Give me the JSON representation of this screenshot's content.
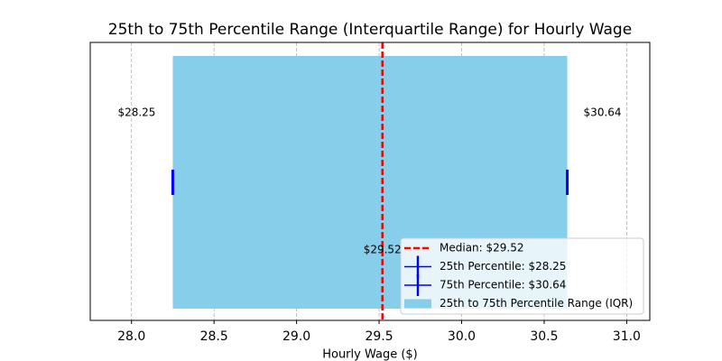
{
  "chart_data": {
    "type": "range",
    "title": "25th to 75th Percentile Range (Interquartile Range) for Hourly Wage",
    "x_label": "Hourly Wage ($)",
    "xlim": [
      27.75,
      31.14
    ],
    "xticks": [
      {
        "value": 28,
        "label": "28.0"
      },
      {
        "value": 28.5,
        "label": "28.5"
      },
      {
        "value": 29,
        "label": "29.0"
      },
      {
        "value": 29.5,
        "label": "29.5"
      },
      {
        "value": 30,
        "label": "30.0"
      },
      {
        "value": 30.5,
        "label": "30.5"
      },
      {
        "value": 31,
        "label": "31.0"
      }
    ],
    "grid": true,
    "legend": "lower right",
    "median": {
      "name": "Median: $29.52",
      "color": "#ff0000",
      "value": 29.52,
      "value_label": "$29.52"
    },
    "markers": [
      {
        "name": "25th Percentile: $28.25",
        "color": "#0000ff",
        "value": 28.25,
        "value_label": "$28.25"
      },
      {
        "name": "75th Percentile: $30.64",
        "color": "#0000ff",
        "value": 30.64,
        "value_label": "$30.64"
      }
    ],
    "iqr": {
      "name": "25th to 75th Percentile Range (IQR)",
      "color": "#87ceeb",
      "values": [
        28.25,
        30.64
      ]
    }
  }
}
